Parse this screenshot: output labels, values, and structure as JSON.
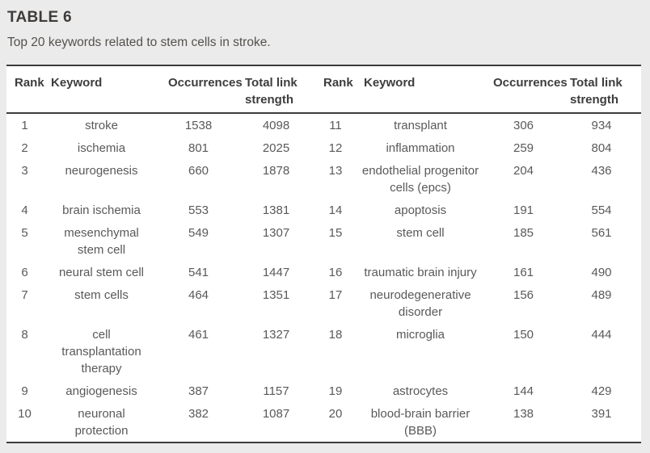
{
  "title": "TABLE 6",
  "caption": "Top 20 keywords related to stem cells in stroke.",
  "colors": {
    "page_background": "#ebebeb",
    "table_background": "#ffffff",
    "rule_color": "#3c3c3c",
    "title_color": "#3e3b38",
    "header_text_color": "#3d3d3d",
    "body_text_color": "#595959"
  },
  "table": {
    "headers": {
      "rank": "Rank",
      "keyword": "Keyword",
      "occurrences": "Occurrences",
      "total_link_strength": "Total link\nstrength"
    },
    "rows": [
      {
        "rank_l": "1",
        "keyword_l": "stroke",
        "occurrences_l": "1538",
        "total_l": "4098",
        "rank_r": "11",
        "keyword_r": "transplant",
        "occurrences_r": "306",
        "total_r": "934"
      },
      {
        "rank_l": "2",
        "keyword_l": "ischemia",
        "occurrences_l": "801",
        "total_l": "2025",
        "rank_r": "12",
        "keyword_r": "inflammation",
        "occurrences_r": "259",
        "total_r": "804"
      },
      {
        "rank_l": "3",
        "keyword_l": "neurogenesis",
        "occurrences_l": "660",
        "total_l": "1878",
        "rank_r": "13",
        "keyword_r": "endothelial progenitor\ncells (epcs)",
        "occurrences_r": "204",
        "total_r": "436"
      },
      {
        "rank_l": "4",
        "keyword_l": "brain ischemia",
        "occurrences_l": "553",
        "total_l": "1381",
        "rank_r": "14",
        "keyword_r": "apoptosis",
        "occurrences_r": "191",
        "total_r": "554"
      },
      {
        "rank_l": "5",
        "keyword_l": "mesenchymal\nstem cell",
        "occurrences_l": "549",
        "total_l": "1307",
        "rank_r": "15",
        "keyword_r": "stem cell",
        "occurrences_r": "185",
        "total_r": "561"
      },
      {
        "rank_l": "6",
        "keyword_l": "neural stem cell",
        "occurrences_l": "541",
        "total_l": "1447",
        "rank_r": "16",
        "keyword_r": "traumatic brain injury",
        "occurrences_r": "161",
        "total_r": "490"
      },
      {
        "rank_l": "7",
        "keyword_l": "stem cells",
        "occurrences_l": "464",
        "total_l": "1351",
        "rank_r": "17",
        "keyword_r": "neurodegenerative\ndisorder",
        "occurrences_r": "156",
        "total_r": "489"
      },
      {
        "rank_l": "8",
        "keyword_l": "cell\ntransplantation\ntherapy",
        "occurrences_l": "461",
        "total_l": "1327",
        "rank_r": "18",
        "keyword_r": "microglia",
        "occurrences_r": "150",
        "total_r": "444"
      },
      {
        "rank_l": "9",
        "keyword_l": "angiogenesis",
        "occurrences_l": "387",
        "total_l": "1157",
        "rank_r": "19",
        "keyword_r": "astrocytes",
        "occurrences_r": "144",
        "total_r": "429"
      },
      {
        "rank_l": "10",
        "keyword_l": "neuronal\nprotection",
        "occurrences_l": "382",
        "total_l": "1087",
        "rank_r": "20",
        "keyword_r": "blood-brain barrier\n(BBB)",
        "occurrences_r": "138",
        "total_r": "391"
      }
    ]
  }
}
